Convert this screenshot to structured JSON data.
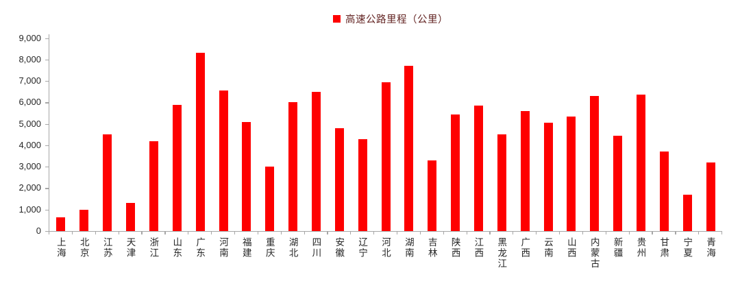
{
  "chart_data": {
    "type": "bar",
    "title": "",
    "legend": "高速公路里程（公里）",
    "legend_position": "top-center",
    "categories": [
      "上海",
      "北京",
      "江苏",
      "天津",
      "浙江",
      "山东",
      "广东",
      "河南",
      "福建",
      "重庆",
      "湖北",
      "四川",
      "安徽",
      "辽宁",
      "河北",
      "湖南",
      "吉林",
      "陕西",
      "江西",
      "黑龙江",
      "广西",
      "云南",
      "山西",
      "内蒙古",
      "新疆",
      "贵州",
      "甘肃",
      "宁夏",
      "青海"
    ],
    "values": [
      650,
      1000,
      4500,
      1300,
      4200,
      5900,
      8300,
      6550,
      5100,
      3000,
      6000,
      6500,
      4800,
      4300,
      6950,
      7700,
      3300,
      5450,
      5850,
      4500,
      5600,
      5050,
      5350,
      6300,
      4450,
      6350,
      3700,
      1700,
      3200
    ],
    "xlabel": "",
    "ylabel": "",
    "ylim": [
      0,
      9000
    ],
    "ytick_step": 1000,
    "ytick_labels": [
      "0",
      "1,000",
      "2,000",
      "3,000",
      "4,000",
      "5,000",
      "6,000",
      "7,000",
      "8,000",
      "9,000"
    ],
    "grid": "off",
    "bar_color": "#fe0000"
  },
  "colors": {
    "bar": "#fe0000",
    "axis": "#a6a6a6",
    "tick_label": "#262626",
    "legend_text": "#632423",
    "background": "#ffffff"
  }
}
